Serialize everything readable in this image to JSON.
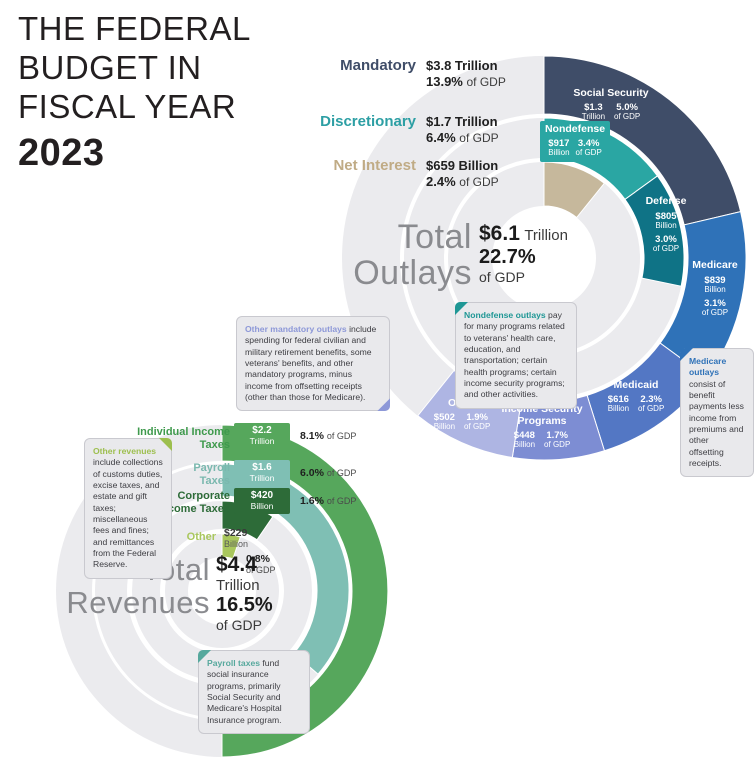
{
  "title": {
    "lines": [
      "THE FEDERAL",
      "BUDGET IN",
      "FISCAL YEAR"
    ],
    "year": "2023"
  },
  "outlays": {
    "center": {
      "word1": "Total",
      "word2": "Outlays",
      "amount": "$6.1",
      "amount_unit": "Trillion",
      "pct": "22.7%",
      "pct_unit": "of GDP"
    },
    "legend": [
      {
        "label": "Mandatory",
        "color": "#3f4d68",
        "amount": "$3.8 Trillion",
        "pct": "13.9%",
        "pct_unit": "of GDP"
      },
      {
        "label": "Discretionary",
        "color": "#2d9fa4",
        "amount": "$1.7 Trillion",
        "pct": "6.4%",
        "pct_unit": "of GDP"
      },
      {
        "label": "Net Interest",
        "color": "#c0ab85",
        "amount": "$659 Billion",
        "pct": "2.4%",
        "pct_unit": "of GDP"
      }
    ],
    "callouts": {
      "other_mandatory": {
        "lead": "Other mandatory outlays",
        "lead_color": "#8d98d8",
        "text": " include spending for federal civilian and military retirement benefits, some veterans' benefits, and other mandatory programs, minus income from offsetting receipts (other than those for Medicare)."
      },
      "nondefense": {
        "lead": "Nondefense outlays",
        "lead_color": "#1f9795",
        "text": " pay for many programs related to veterans' health care, education, and transportation; certain health programs; certain income security programs; and other activities."
      },
      "medicare": {
        "lead": "Medicare outlays",
        "lead_color": "#2f72b8",
        "text": " consist of benefit payments less income from premiums and other offsetting receipts."
      }
    }
  },
  "revenues": {
    "center": {
      "word1": "Total",
      "word2": "Revenues",
      "amount": "$4.4",
      "amount_unit": "Trillion",
      "pct": "16.5%",
      "pct_unit": "of GDP"
    },
    "legend": [
      {
        "label": "Individual Income Taxes",
        "label_color": "#3f9a4d",
        "amount": "$2.2",
        "unit": "Trillion",
        "pct": "8.1%",
        "pct_unit": "of GDP"
      },
      {
        "label": "Payroll Taxes",
        "label_color": "#7ab8ae",
        "amount": "$1.6",
        "unit": "Trillion",
        "pct": "6.0%",
        "pct_unit": "of GDP"
      },
      {
        "label": "Corporate Income Taxes",
        "label_color": "#2d6b38",
        "amount": "$420",
        "unit": "Billion",
        "pct": "1.6%",
        "pct_unit": "of GDP"
      },
      {
        "label": "Other",
        "label_color": "#a9c75d",
        "amount": "$229",
        "unit": "Billion",
        "pct": "0.8%",
        "pct_unit": "of GDP"
      }
    ],
    "callouts": {
      "other_revenues": {
        "lead": "Other revenues",
        "lead_color": "#9dbf4e",
        "text": " include collections of customs duties, excise taxes, and estate and gift taxes; miscellaneous fees and fines; and remittances from the Federal Reserve."
      },
      "payroll": {
        "lead": "Payroll taxes",
        "lead_color": "#56a89d",
        "text": " fund social insurance programs, primarily Social Security and Medicare's Hospital Insurance program."
      }
    }
  },
  "chart_data": [
    {
      "id": "outlays",
      "type": "concentric-ring-chart",
      "title": "Total Outlays",
      "total": 6.1,
      "total_display": "$6.1 Trillion",
      "total_pct_of_gdp": "22.7%",
      "rings": [
        {
          "category": "Mandatory",
          "category_display": "$3.8 Trillion",
          "category_pct": "13.9%",
          "segments": [
            {
              "label": "Social Security",
              "value": 1.3,
              "color": "#3f4d68",
              "amount": "$1.3",
              "unit": "Trillion",
              "pct": "5.0%",
              "pct_unit": "of GDP"
            },
            {
              "label": "Medicare",
              "value": 0.839,
              "color": "#2f72b8",
              "amount": "$839",
              "unit": "Billion",
              "pct": "3.1%",
              "pct_unit": "of GDP"
            },
            {
              "label": "Medicaid",
              "value": 0.616,
              "color": "#5377c4",
              "amount": "$616",
              "unit": "Billion",
              "pct": "2.3%",
              "pct_unit": "of GDP"
            },
            {
              "label": "Income Security Programs",
              "value": 0.448,
              "color": "#7d8dd3",
              "amount": "$448",
              "unit": "Billion",
              "pct": "1.7%",
              "pct_unit": "of GDP"
            },
            {
              "label": "Other",
              "value": 0.502,
              "color": "#aeb5e3",
              "amount": "$502",
              "unit": "Billion",
              "pct": "1.9%",
              "pct_unit": "of GDP"
            }
          ]
        },
        {
          "category": "Discretionary",
          "category_display": "$1.7 Trillion",
          "category_pct": "6.4%",
          "segments": [
            {
              "label": "Nondefense",
              "value": 0.917,
              "color": "#2aa6a3",
              "amount": "$917",
              "unit": "Billion",
              "pct": "3.4%",
              "pct_unit": "of GDP"
            },
            {
              "label": "Defense",
              "value": 0.805,
              "color": "#0f7386",
              "amount": "$805",
              "unit": "Billion",
              "pct": "3.0%",
              "pct_unit": "of GDP"
            }
          ]
        },
        {
          "category": "Net Interest",
          "category_display": "$659 Billion",
          "category_pct": "2.4%",
          "segments": [
            {
              "label": "Net Interest",
              "value": 0.659,
              "color": "#c6b89c",
              "amount": "$659",
              "unit": "Billion",
              "pct": "2.4%",
              "pct_unit": "of GDP"
            }
          ]
        }
      ]
    },
    {
      "id": "revenues",
      "type": "concentric-ring-chart",
      "title": "Total Revenues",
      "total": 4.4,
      "total_display": "$4.4 Trillion",
      "total_pct_of_gdp": "16.5%",
      "rings": [
        {
          "category": "Individual Income Taxes",
          "segments": [
            {
              "label": "Individual Income Taxes",
              "value": 2.2,
              "color": "#56a75c",
              "amount": "$2.2",
              "unit": "Trillion",
              "pct": "8.1%",
              "pct_unit": "of GDP"
            }
          ]
        },
        {
          "category": "Payroll Taxes",
          "segments": [
            {
              "label": "Payroll Taxes",
              "value": 1.6,
              "color": "#7fbfb4",
              "amount": "$1.6",
              "unit": "Trillion",
              "pct": "6.0%",
              "pct_unit": "of GDP"
            }
          ]
        },
        {
          "category": "Corporate Income Taxes",
          "segments": [
            {
              "label": "Corporate Income Taxes",
              "value": 0.42,
              "color": "#2d6b38",
              "amount": "$420",
              "unit": "Billion",
              "pct": "1.6%",
              "pct_unit": "of GDP"
            }
          ]
        },
        {
          "category": "Other",
          "segments": [
            {
              "label": "Other",
              "value": 0.229,
              "color": "#a9c75d",
              "amount": "$229",
              "unit": "Billion",
              "pct": "0.8%",
              "pct_unit": "of GDP"
            }
          ]
        }
      ]
    }
  ]
}
